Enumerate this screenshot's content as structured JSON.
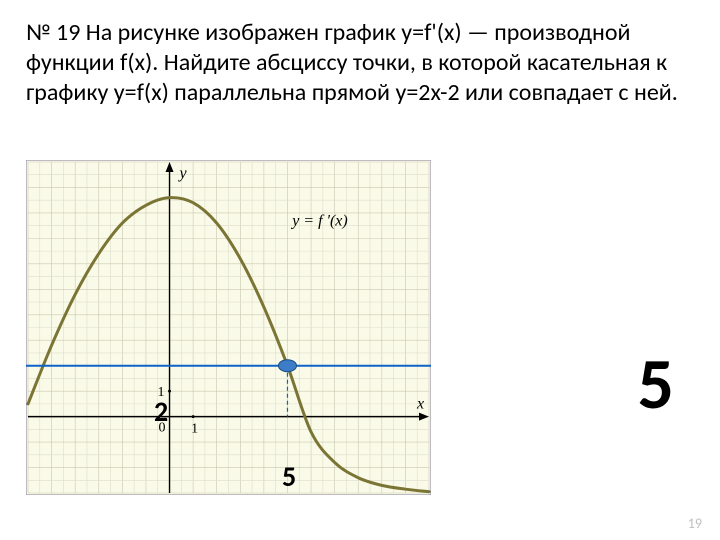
{
  "problem": {
    "text": "№ 19 На рисунке изображен график y=f'(x) — производной функции f(x). Найдите абсциссу точки, в которой касательная к графику y=f(x) параллельна прямой y=2x-2 или совпадает с ней."
  },
  "chart": {
    "type": "line",
    "background_color": "#fafae8",
    "border_color": "#7f7f9c",
    "grid_color": "#dedecb",
    "grid_major_color": "#c8c8b0",
    "axis_color": "#000000",
    "curve_color": "#7a7534",
    "curve_width": 3,
    "horizontal_line_color": "#0d63c9",
    "horizontal_line_width": 2,
    "horizontal_line_y": 2,
    "dashed_color": "#0d63c9",
    "marker_fill": "#3d7cc9",
    "marker_stroke": "#1a4a80",
    "marker_rx": 9,
    "marker_ry": 6,
    "equation_label": "y = f '(x)",
    "xlim": [
      -6,
      11
    ],
    "ylim": [
      -3,
      10
    ],
    "x_tick_label": "1",
    "y_tick_label": "1",
    "origin_label": "0",
    "x_axis_name": "x",
    "y_axis_name": "y",
    "intersection_x": 5,
    "curve_points": [
      [
        -6,
        0.5
      ],
      [
        -5,
        2.8
      ],
      [
        -4,
        4.8
      ],
      [
        -3,
        6.4
      ],
      [
        -2,
        7.6
      ],
      [
        -1,
        8.3
      ],
      [
        0,
        8.6
      ],
      [
        1,
        8.4
      ],
      [
        2,
        7.6
      ],
      [
        3,
        6.2
      ],
      [
        4,
        4.3
      ],
      [
        5,
        2.0
      ],
      [
        6,
        -0.6
      ],
      [
        7,
        -1.8
      ],
      [
        8,
        -2.4
      ],
      [
        9,
        -2.7
      ],
      [
        10,
        -2.85
      ],
      [
        11,
        -2.95
      ]
    ]
  },
  "overlays": {
    "y_value_label": "2",
    "x_value_label": "5"
  },
  "answer": "5",
  "slide_number": "19"
}
